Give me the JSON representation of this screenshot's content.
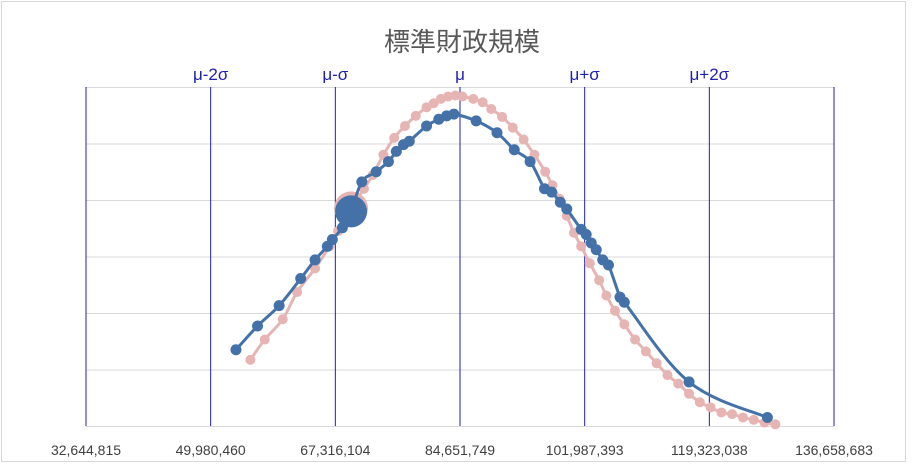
{
  "chart_data": {
    "type": "scatter",
    "title": "標準財政規模",
    "x_tick_labels": [
      "32,644,815",
      "49,980,460",
      "67,316,104",
      "84,651,749",
      "101,987,393",
      "119,323,038",
      "136,658,683"
    ],
    "x_ticks": [
      32644815,
      49980460,
      67316104,
      84651749,
      101987393,
      119323038,
      136658683
    ],
    "xlim": [
      32644815,
      136658683
    ],
    "ylim": [
      0,
      1
    ],
    "sigma_lines": [
      {
        "label": "μ-2σ",
        "x": 49980460
      },
      {
        "label": "μ-σ",
        "x": 67316104
      },
      {
        "label": "μ",
        "x": 84651749
      },
      {
        "label": "μ+σ",
        "x": 101987393
      },
      {
        "label": "μ+2σ",
        "x": 119323038
      }
    ],
    "grid": true,
    "colors": {
      "fitted": "#e7b4b4",
      "observed": "#4472a8",
      "sigma_lines": "#1f1fb0",
      "grid": "#d9d9d9"
    },
    "highlight_point": {
      "x": 69500000,
      "y": 0.633
    },
    "series": [
      {
        "role": "normal-fit",
        "x": [
          55500000,
          57500000,
          60000000,
          62000000,
          64500000,
          66500000,
          67700000,
          68800000,
          69500000,
          70200000,
          71300000,
          72500000,
          74000000,
          75500000,
          77000000,
          78500000,
          80000000,
          81000000,
          82000000,
          83000000,
          84000000,
          85000000,
          86500000,
          87800000,
          89000000,
          90500000,
          92000000,
          93500000,
          95000000,
          96500000,
          97500000,
          98500000,
          99500000,
          100500000,
          101500000,
          102700000,
          104000000,
          105000000,
          106200000,
          107500000,
          109000000,
          110500000,
          112000000,
          113500000,
          115000000,
          116500000,
          118000000,
          119500000,
          121000000,
          122500000,
          124000000,
          125500000,
          127000000,
          128500000
        ],
        "y": [
          0.195,
          0.255,
          0.315,
          0.395,
          0.465,
          0.53,
          0.575,
          0.62,
          0.645,
          0.665,
          0.7,
          0.74,
          0.8,
          0.85,
          0.885,
          0.915,
          0.94,
          0.952,
          0.965,
          0.972,
          0.975,
          0.972,
          0.965,
          0.955,
          0.935,
          0.912,
          0.88,
          0.845,
          0.8,
          0.75,
          0.71,
          0.67,
          0.62,
          0.57,
          0.53,
          0.48,
          0.43,
          0.385,
          0.34,
          0.3,
          0.255,
          0.22,
          0.185,
          0.15,
          0.125,
          0.095,
          0.07,
          0.055,
          0.04,
          0.035,
          0.025,
          0.018,
          0.01,
          0.005
        ]
      },
      {
        "role": "observed",
        "x": [
          53500000,
          56500000,
          59500000,
          62500000,
          64500000,
          66200000,
          66900000,
          68300000,
          69500000,
          71000000,
          73000000,
          74700000,
          75800000,
          76800000,
          77600000,
          80000000,
          81700000,
          82800000,
          83800000,
          86900000,
          89800000,
          92200000,
          94400000,
          96400000,
          97400000,
          98600000,
          99500000,
          101500000,
          102200000,
          102900000,
          103600000,
          104500000,
          105300000,
          106900000,
          107500000,
          116500000,
          127400000
        ],
        "y": [
          0.225,
          0.295,
          0.355,
          0.435,
          0.49,
          0.53,
          0.55,
          0.585,
          0.633,
          0.72,
          0.75,
          0.78,
          0.81,
          0.83,
          0.84,
          0.885,
          0.905,
          0.915,
          0.92,
          0.9,
          0.865,
          0.815,
          0.78,
          0.7,
          0.69,
          0.66,
          0.64,
          0.58,
          0.565,
          0.54,
          0.52,
          0.49,
          0.475,
          0.38,
          0.365,
          0.13,
          0.025
        ]
      }
    ]
  }
}
